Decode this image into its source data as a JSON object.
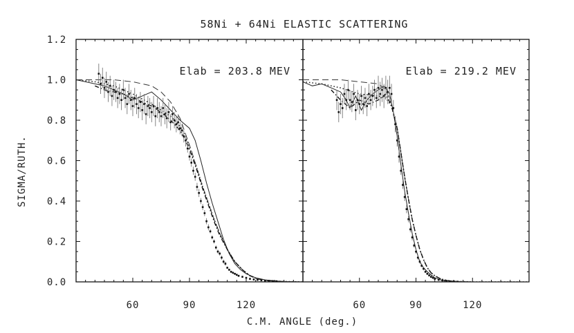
{
  "chart_data": {
    "type": "line",
    "title": "58Ni + 64Ni ELASTIC SCATTERING",
    "ylabel": "SIGMA/RUTH.",
    "xlabel": "C.M. ANGLE (deg.)",
    "ylim": [
      0.0,
      1.2
    ],
    "yticks": [
      "0.0",
      "0.2",
      "0.4",
      "0.6",
      "0.8",
      "1.0",
      "1.2"
    ],
    "panels": [
      {
        "id": "left",
        "annotation": "Elab = 203.8 MEV",
        "xlim": [
          30,
          150
        ],
        "xticks": [
          60,
          90,
          120
        ],
        "series": [
          {
            "name": "fit-solid",
            "style": "solid",
            "x": [
              30,
              35,
              40,
              45,
              50,
              55,
              60,
              65,
              70,
              75,
              80,
              85,
              90,
              93,
              96,
              99,
              102,
              105,
              108,
              111,
              114,
              117,
              120,
              125,
              130,
              135,
              140,
              150
            ],
            "y": [
              1.0,
              0.99,
              0.98,
              0.97,
              0.95,
              0.93,
              0.9,
              0.92,
              0.94,
              0.9,
              0.85,
              0.8,
              0.76,
              0.7,
              0.6,
              0.49,
              0.39,
              0.3,
              0.21,
              0.14,
              0.09,
              0.06,
              0.04,
              0.02,
              0.01,
              0.005,
              0.002,
              0.0
            ]
          },
          {
            "name": "fit-dashed",
            "style": "dashed",
            "x": [
              30,
              40,
              50,
              60,
              70,
              75,
              80,
              85,
              88,
              91,
              94,
              97,
              100,
              103,
              106,
              110,
              114,
              118,
              122,
              126,
              130,
              135,
              140,
              150
            ],
            "y": [
              1.0,
              1.0,
              1.0,
              0.99,
              0.97,
              0.94,
              0.89,
              0.81,
              0.73,
              0.65,
              0.56,
              0.47,
              0.39,
              0.31,
              0.24,
              0.16,
              0.1,
              0.06,
              0.03,
              0.015,
              0.008,
              0.004,
              0.002,
              0.0
            ]
          },
          {
            "name": "fit-dotted",
            "style": "dotted",
            "x": [
              30,
              40,
              50,
              60,
              70,
              80,
              85,
              88,
              91,
              94,
              97,
              100,
              103,
              106,
              110,
              114,
              118,
              122,
              126,
              130,
              135,
              140,
              150
            ],
            "y": [
              1.0,
              0.99,
              0.97,
              0.93,
              0.88,
              0.82,
              0.77,
              0.72,
              0.64,
              0.56,
              0.47,
              0.39,
              0.31,
              0.24,
              0.16,
              0.1,
              0.06,
              0.03,
              0.015,
              0.008,
              0.004,
              0.002,
              0.0
            ]
          },
          {
            "name": "fit-dashdot",
            "style": "dashdot",
            "x": [
              40,
              45,
              50,
              55,
              60,
              65,
              70,
              75,
              80,
              85,
              88,
              91,
              94,
              97,
              100,
              103,
              106,
              110,
              114,
              118,
              122,
              126,
              130,
              135
            ],
            "y": [
              0.97,
              0.95,
              0.94,
              0.93,
              0.91,
              0.89,
              0.87,
              0.84,
              0.8,
              0.75,
              0.7,
              0.63,
              0.55,
              0.46,
              0.38,
              0.3,
              0.23,
              0.16,
              0.1,
              0.06,
              0.03,
              0.015,
              0.008,
              0.004
            ]
          },
          {
            "name": "data",
            "style": "points",
            "x": [
              42,
              43,
              44,
              45,
              46,
              47,
              48,
              49,
              50,
              51,
              52,
              53,
              54,
              55,
              56,
              57,
              58,
              59,
              60,
              61,
              62,
              63,
              64,
              65,
              66,
              67,
              68,
              69,
              70,
              71,
              72,
              73,
              74,
              75,
              76,
              77,
              78,
              79,
              80,
              81,
              82,
              83,
              84,
              85,
              86,
              87,
              88,
              89,
              90,
              91,
              92,
              93,
              94,
              95,
              96,
              97,
              98,
              99,
              100,
              101,
              102,
              103,
              104,
              105,
              106,
              107,
              108,
              109,
              110,
              111,
              112,
              113,
              114,
              115,
              116,
              118,
              120,
              122,
              124,
              126,
              128,
              130,
              132,
              134,
              136
            ],
            "y": [
              1.03,
              0.98,
              1.01,
              0.96,
              0.99,
              0.94,
              0.97,
              0.92,
              0.95,
              0.94,
              0.91,
              0.93,
              0.9,
              0.95,
              0.91,
              0.88,
              0.93,
              0.9,
              0.87,
              0.91,
              0.88,
              0.86,
              0.89,
              0.85,
              0.88,
              0.83,
              0.87,
              0.86,
              0.84,
              0.87,
              0.82,
              0.86,
              0.84,
              0.82,
              0.86,
              0.83,
              0.81,
              0.84,
              0.79,
              0.83,
              0.8,
              0.78,
              0.79,
              0.76,
              0.75,
              0.72,
              0.7,
              0.66,
              0.62,
              0.59,
              0.55,
              0.52,
              0.47,
              0.44,
              0.4,
              0.37,
              0.34,
              0.3,
              0.27,
              0.25,
              0.22,
              0.2,
              0.17,
              0.15,
              0.14,
              0.12,
              0.1,
              0.09,
              0.07,
              0.06,
              0.05,
              0.045,
              0.04,
              0.035,
              0.03,
              0.025,
              0.02,
              0.015,
              0.012,
              0.01,
              0.008,
              0.006,
              0.005,
              0.004,
              0.003
            ],
            "err": [
              0.05,
              0.05,
              0.05,
              0.05,
              0.05,
              0.05,
              0.05,
              0.05,
              0.05,
              0.05,
              0.05,
              0.05,
              0.05,
              0.05,
              0.05,
              0.05,
              0.05,
              0.05,
              0.05,
              0.05,
              0.05,
              0.05,
              0.05,
              0.05,
              0.05,
              0.05,
              0.05,
              0.05,
              0.05,
              0.05,
              0.05,
              0.05,
              0.05,
              0.05,
              0.05,
              0.05,
              0.05,
              0.05,
              0.04,
              0.04,
              0.04,
              0.04,
              0.04,
              0.03,
              0.03,
              0.03,
              0.03,
              0.02,
              0.02,
              0.02,
              0.02,
              0.02,
              0.02,
              0.02,
              0.015,
              0.015,
              0.015,
              0.015,
              0.015,
              0.01,
              0.01,
              0.01,
              0.01,
              0.01,
              0.01,
              0.01,
              0.01,
              0.01,
              0.005,
              0.005,
              0.005,
              0.005,
              0.005,
              0.005,
              0.005,
              0.005,
              0.005,
              0.005,
              0.005,
              0.005,
              0.005,
              0.005,
              0.005,
              0.005,
              0.005
            ]
          }
        ]
      },
      {
        "id": "right",
        "annotation": "Elab = 219.2 MEV",
        "xlim": [
          30,
          150
        ],
        "xticks": [
          60,
          90,
          120
        ],
        "series": [
          {
            "name": "fit-solid",
            "style": "solid",
            "x": [
              30,
              35,
              40,
              45,
              50,
              53,
              55,
              58,
              61,
              64,
              67,
              70,
              73,
              76,
              78,
              80,
              82,
              84,
              86,
              88,
              90,
              92,
              94,
              96,
              98,
              100,
              103,
              106,
              110,
              115,
              120,
              130,
              150
            ],
            "y": [
              0.99,
              0.97,
              0.98,
              0.96,
              0.94,
              0.9,
              0.86,
              0.92,
              0.85,
              0.9,
              0.93,
              0.95,
              0.97,
              0.93,
              0.84,
              0.72,
              0.58,
              0.45,
              0.34,
              0.24,
              0.16,
              0.1,
              0.07,
              0.05,
              0.035,
              0.02,
              0.01,
              0.005,
              0.002,
              0.001,
              0.0,
              0.0,
              0.0
            ]
          },
          {
            "name": "fit-dashed",
            "style": "dashed",
            "x": [
              30,
              40,
              50,
              60,
              70,
              74,
              77,
              80,
              82,
              84,
              86,
              88,
              90,
              92,
              94,
              96,
              98,
              100,
              103,
              106,
              110,
              120,
              150
            ],
            "y": [
              1.0,
              1.0,
              1.0,
              0.99,
              0.98,
              0.95,
              0.88,
              0.76,
              0.64,
              0.52,
              0.41,
              0.31,
              0.23,
              0.16,
              0.11,
              0.07,
              0.045,
              0.03,
              0.015,
              0.008,
              0.003,
              0.0,
              0.0
            ]
          },
          {
            "name": "fit-dotted",
            "style": "dotted",
            "x": [
              30,
              40,
              50,
              60,
              70,
              74,
              77,
              80,
              82,
              84,
              86,
              88,
              90,
              92,
              94,
              96,
              98,
              100,
              103,
              106,
              110,
              120,
              150
            ],
            "y": [
              0.99,
              0.98,
              0.96,
              0.93,
              0.92,
              0.91,
              0.87,
              0.76,
              0.64,
              0.52,
              0.41,
              0.31,
              0.23,
              0.16,
              0.11,
              0.07,
              0.045,
              0.03,
              0.015,
              0.008,
              0.003,
              0.0,
              0.0
            ]
          },
          {
            "name": "fit-dashdot",
            "style": "dashdot",
            "x": [
              45,
              50,
              55,
              60,
              65,
              70,
              74,
              77,
              80,
              82,
              84,
              86,
              88,
              90,
              92,
              94,
              96,
              98,
              100,
              103,
              106
            ],
            "y": [
              0.95,
              0.9,
              0.86,
              0.9,
              0.88,
              0.9,
              0.93,
              0.87,
              0.76,
              0.64,
              0.52,
              0.41,
              0.31,
              0.23,
              0.16,
              0.11,
              0.07,
              0.045,
              0.03,
              0.015,
              0.008
            ]
          },
          {
            "name": "data",
            "style": "points",
            "x": [
              48,
              49,
              50,
              51,
              52,
              53,
              54,
              55,
              56,
              57,
              58,
              59,
              60,
              61,
              62,
              63,
              64,
              65,
              66,
              67,
              68,
              69,
              70,
              71,
              72,
              73,
              74,
              75,
              76,
              77,
              78,
              79,
              80,
              81,
              82,
              83,
              84,
              85,
              86,
              87,
              88,
              89,
              90,
              91,
              92,
              93,
              94,
              95,
              96,
              97,
              98,
              99,
              100,
              102,
              104,
              106,
              108,
              110,
              112
            ],
            "y": [
              0.9,
              0.84,
              0.88,
              0.86,
              0.93,
              0.9,
              0.95,
              0.9,
              0.89,
              0.93,
              0.85,
              0.9,
              0.88,
              0.92,
              0.88,
              0.91,
              0.87,
              0.93,
              0.9,
              0.92,
              0.95,
              0.91,
              0.96,
              0.93,
              0.95,
              0.92,
              0.96,
              0.94,
              0.96,
              0.93,
              0.86,
              0.78,
              0.7,
              0.62,
              0.55,
              0.48,
              0.42,
              0.36,
              0.31,
              0.26,
              0.22,
              0.18,
              0.15,
              0.12,
              0.1,
              0.08,
              0.065,
              0.05,
              0.04,
              0.032,
              0.025,
              0.02,
              0.015,
              0.01,
              0.007,
              0.005,
              0.003,
              0.002,
              0.001
            ],
            "err": [
              0.05,
              0.05,
              0.05,
              0.05,
              0.05,
              0.05,
              0.05,
              0.05,
              0.05,
              0.05,
              0.05,
              0.05,
              0.05,
              0.05,
              0.05,
              0.05,
              0.05,
              0.05,
              0.05,
              0.05,
              0.05,
              0.05,
              0.06,
              0.06,
              0.06,
              0.06,
              0.06,
              0.06,
              0.06,
              0.05,
              0.04,
              0.04,
              0.03,
              0.03,
              0.02,
              0.02,
              0.02,
              0.02,
              0.015,
              0.015,
              0.015,
              0.01,
              0.01,
              0.01,
              0.01,
              0.008,
              0.008,
              0.006,
              0.005,
              0.005,
              0.005,
              0.004,
              0.004,
              0.003,
              0.003,
              0.002,
              0.002,
              0.002,
              0.001
            ]
          }
        ]
      }
    ]
  }
}
